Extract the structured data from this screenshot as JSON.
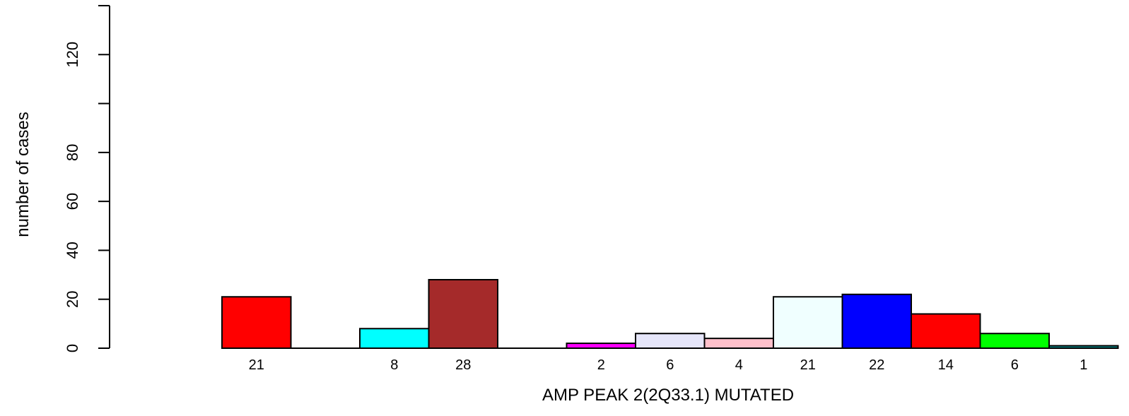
{
  "chart_data": {
    "type": "bar",
    "title": "",
    "xlabel": "AMP PEAK  2(2Q33.1) MUTATED",
    "ylabel": "number of cases",
    "ylim": [
      0,
      140
    ],
    "yticks": [
      0,
      20,
      40,
      60,
      80,
      120
    ],
    "grid": false,
    "legend": "none",
    "values": [
      21,
      0,
      8,
      28,
      0,
      2,
      6,
      4,
      21,
      22,
      14,
      6,
      1
    ],
    "count_labels": [
      "21",
      "",
      "8",
      "28",
      "",
      "2",
      "6",
      "4",
      "21",
      "22",
      "14",
      "6",
      "1"
    ],
    "colors": [
      "#ff0000",
      "#ffffff",
      "#00ffff",
      "#a52a2a",
      "#ffffff",
      "#ff00ff",
      "#e6e6fa",
      "#ffc0cb",
      "#f0ffff",
      "#0000ff",
      "#ff0000",
      "#00ff00",
      "#008b8b"
    ]
  }
}
